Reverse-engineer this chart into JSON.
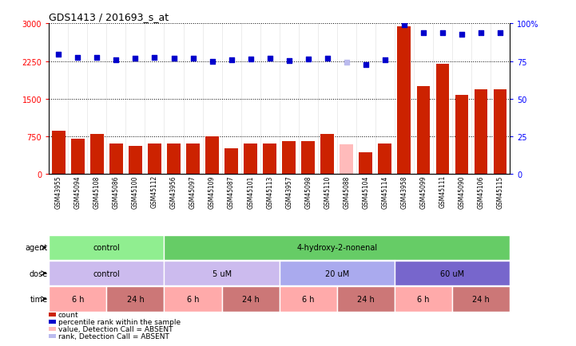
{
  "title": "GDS1413 / 201693_s_at",
  "samples": [
    "GSM43955",
    "GSM45094",
    "GSM45108",
    "GSM45086",
    "GSM45100",
    "GSM45112",
    "GSM43956",
    "GSM45097",
    "GSM45109",
    "GSM45087",
    "GSM45101",
    "GSM45113",
    "GSM43957",
    "GSM45098",
    "GSM45110",
    "GSM45088",
    "GSM45104",
    "GSM45114",
    "GSM43958",
    "GSM45099",
    "GSM45111",
    "GSM45090",
    "GSM45106",
    "GSM45115"
  ],
  "bar_values": [
    850,
    700,
    800,
    600,
    560,
    600,
    600,
    600,
    750,
    500,
    600,
    600,
    650,
    650,
    800,
    580,
    430,
    600,
    2950,
    1750,
    2200,
    1580,
    1680,
    1680
  ],
  "bar_absent": [
    false,
    false,
    false,
    false,
    false,
    false,
    false,
    false,
    false,
    false,
    false,
    false,
    false,
    false,
    false,
    true,
    false,
    false,
    false,
    false,
    false,
    false,
    false,
    false
  ],
  "dot_values": [
    2380,
    2320,
    2320,
    2280,
    2310,
    2320,
    2310,
    2300,
    2240,
    2270,
    2290,
    2310,
    2260,
    2290,
    2310,
    2230,
    2180,
    2280,
    2980,
    2820,
    2820,
    2780,
    2820,
    2820
  ],
  "dot_absent": [
    false,
    false,
    false,
    false,
    false,
    false,
    false,
    false,
    false,
    false,
    false,
    false,
    false,
    false,
    false,
    true,
    false,
    false,
    false,
    false,
    false,
    false,
    false,
    false
  ],
  "ylim_left": [
    0,
    3000
  ],
  "ylim_right": [
    0,
    100
  ],
  "yticks_left": [
    0,
    750,
    1500,
    2250,
    3000
  ],
  "yticks_right": [
    0,
    25,
    50,
    75,
    100
  ],
  "agent_labels": [
    {
      "text": "control",
      "start": 0,
      "end": 5,
      "color": "#90EE90"
    },
    {
      "text": "4-hydroxy-2-nonenal",
      "start": 6,
      "end": 23,
      "color": "#66CC66"
    }
  ],
  "dose_labels": [
    {
      "text": "control",
      "start": 0,
      "end": 5,
      "color": "#CCBBEE"
    },
    {
      "text": "5 uM",
      "start": 6,
      "end": 11,
      "color": "#CCBBEE"
    },
    {
      "text": "20 uM",
      "start": 12,
      "end": 17,
      "color": "#AAAAEE"
    },
    {
      "text": "60 uM",
      "start": 18,
      "end": 23,
      "color": "#7766CC"
    }
  ],
  "time_labels": [
    {
      "text": "6 h",
      "start": 0,
      "end": 2,
      "color": "#FFAAAA"
    },
    {
      "text": "24 h",
      "start": 3,
      "end": 5,
      "color": "#CC7777"
    },
    {
      "text": "6 h",
      "start": 6,
      "end": 8,
      "color": "#FFAAAA"
    },
    {
      "text": "24 h",
      "start": 9,
      "end": 11,
      "color": "#CC7777"
    },
    {
      "text": "6 h",
      "start": 12,
      "end": 14,
      "color": "#FFAAAA"
    },
    {
      "text": "24 h",
      "start": 15,
      "end": 17,
      "color": "#CC7777"
    },
    {
      "text": "6 h",
      "start": 18,
      "end": 20,
      "color": "#FFAAAA"
    },
    {
      "text": "24 h",
      "start": 21,
      "end": 23,
      "color": "#CC7777"
    }
  ],
  "bar_color_normal": "#CC2200",
  "bar_color_absent": "#FFBBBB",
  "dot_color_normal": "#0000CC",
  "dot_color_absent": "#BBBBEE",
  "background_color": "#FFFFFF",
  "legend_items": [
    {
      "color": "#CC2200",
      "label": "count"
    },
    {
      "color": "#0000CC",
      "label": "percentile rank within the sample"
    },
    {
      "color": "#FFBBBB",
      "label": "value, Detection Call = ABSENT"
    },
    {
      "color": "#BBBBEE",
      "label": "rank, Detection Call = ABSENT"
    }
  ]
}
